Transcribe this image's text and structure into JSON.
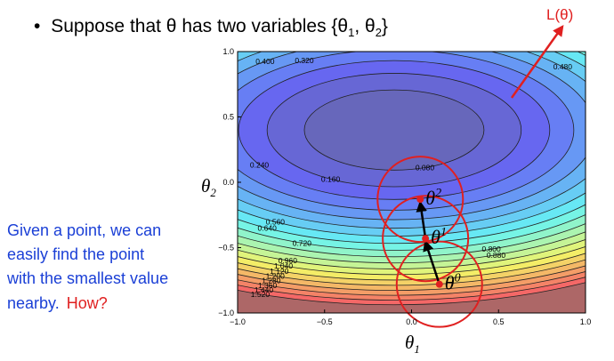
{
  "heading": {
    "bullet": "•",
    "text": "Suppose that θ has two variables {θ",
    "sub1": "1",
    "mid": ", θ",
    "sub2": "2",
    "end": "}"
  },
  "loss_label": "L(θ)",
  "side_text": {
    "lines": [
      "Given a point, we can",
      "easily find the point",
      "with the smallest value",
      "nearby."
    ],
    "question": "How?"
  },
  "chart_data": {
    "type": "contour",
    "x_label": {
      "symbol": "θ",
      "subscript": "1"
    },
    "y_label": {
      "symbol": "θ",
      "subscript": "2"
    },
    "xlim": [
      -1,
      1
    ],
    "ylim": [
      -1,
      1
    ],
    "xticks": [
      {
        "value": -1,
        "label": "−1.0"
      },
      {
        "value": -0.5,
        "label": "−0.5"
      },
      {
        "value": 0,
        "label": "0.0"
      },
      {
        "value": 0.5,
        "label": "0.5"
      },
      {
        "value": 1,
        "label": "1.0"
      }
    ],
    "yticks": [
      {
        "value": -1,
        "label": "−1.0"
      },
      {
        "value": -0.5,
        "label": "−0.5"
      },
      {
        "value": 0,
        "label": "0.0"
      },
      {
        "value": 0.5,
        "label": "0.5"
      },
      {
        "value": 1,
        "label": "1.0"
      }
    ],
    "levels": [
      {
        "value": 0.08,
        "label": "0.080"
      },
      {
        "value": 0.16,
        "label": "0.160"
      },
      {
        "value": 0.24,
        "label": "0.240"
      },
      {
        "value": 0.32,
        "label": "0.320"
      },
      {
        "value": 0.4,
        "label": "0.400"
      },
      {
        "value": 0.48,
        "label": "0.480"
      },
      {
        "value": 0.56,
        "label": "0.560"
      },
      {
        "value": 0.64,
        "label": "0.640"
      },
      {
        "value": 0.72,
        "label": "0.720"
      },
      {
        "value": 0.8,
        "label": "0.800"
      },
      {
        "value": 0.88,
        "label": "0.880"
      },
      {
        "value": 0.96,
        "label": "0.960"
      },
      {
        "value": 1.04,
        "label": "1.040"
      },
      {
        "value": 1.12,
        "label": "1.120"
      },
      {
        "value": 1.2,
        "label": "1.200"
      },
      {
        "value": 1.28,
        "label": "1.280"
      },
      {
        "value": 1.36,
        "label": "1.360"
      },
      {
        "value": 1.44,
        "label": "1.440"
      },
      {
        "value": 1.52,
        "label": "1.520"
      }
    ],
    "points": [
      {
        "x": 0.16,
        "y": -0.78,
        "label": "θ",
        "sup": "0"
      },
      {
        "x": 0.08,
        "y": -0.43,
        "label": "θ",
        "sup": "1"
      },
      {
        "x": 0.05,
        "y": -0.13,
        "label": "θ",
        "sup": "2"
      }
    ]
  }
}
